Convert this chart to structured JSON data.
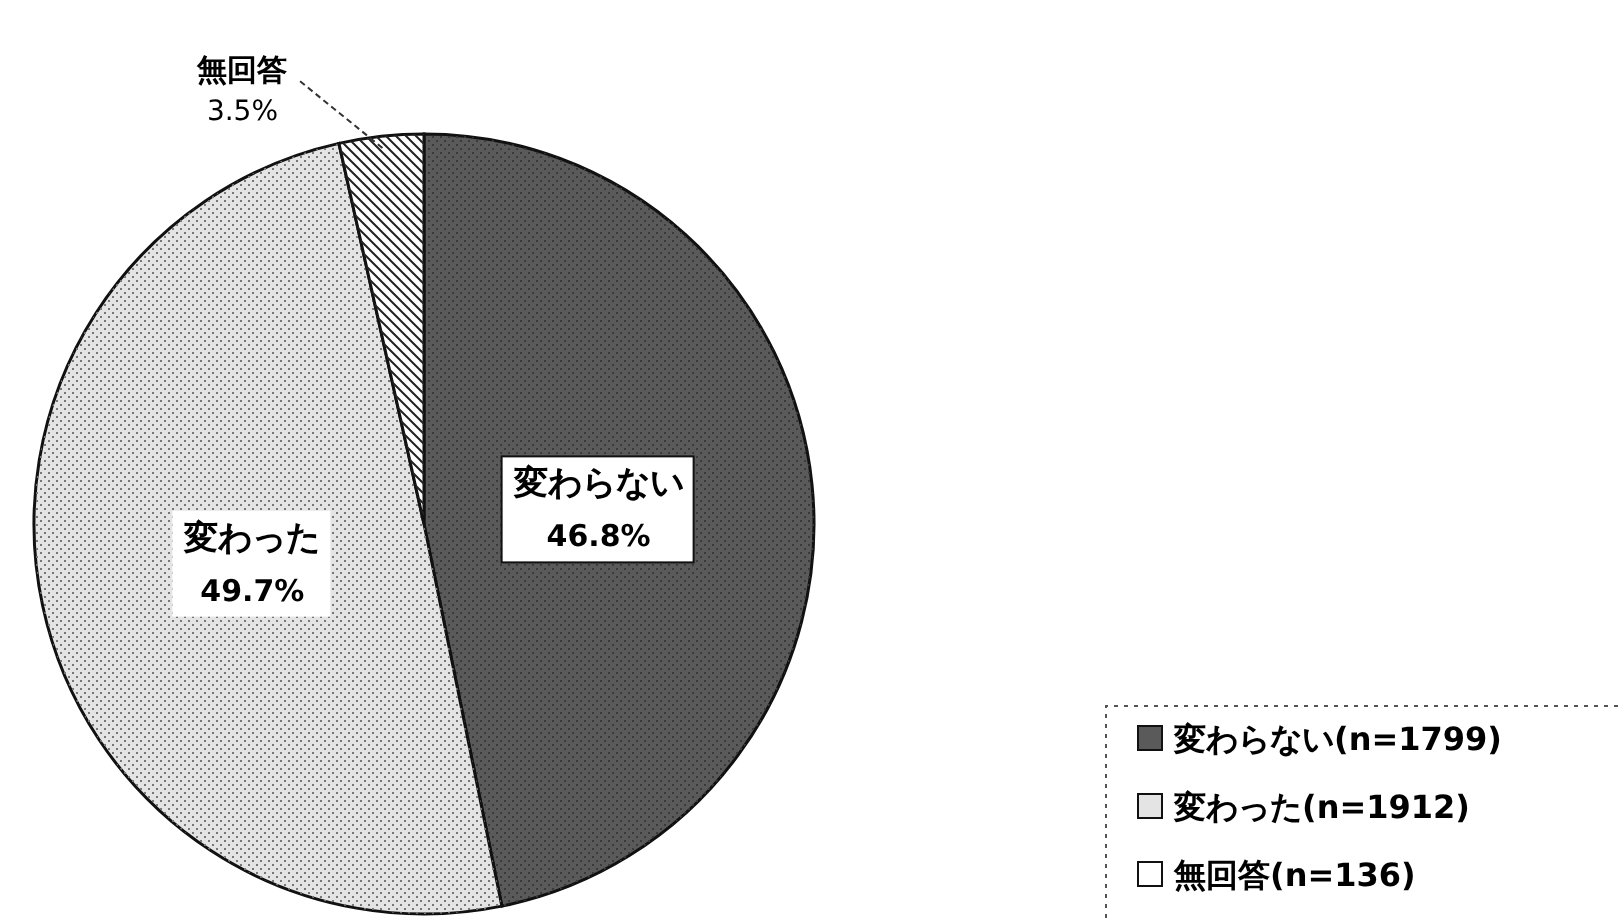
{
  "chart_data": {
    "type": "pie",
    "categories": [
      "変わらない",
      "変わった",
      "無回答"
    ],
    "values": [
      46.8,
      49.7,
      3.5
    ],
    "colors": [
      "#5a5a5a",
      "#e4e4e4",
      "#ffffff"
    ],
    "value_labels": [
      "46.8%",
      "49.7%",
      "3.5%"
    ],
    "legend": "bottom right",
    "annotations": [
      "(n=1799)",
      "(n=1912)",
      "(n=136)"
    ]
  }
}
